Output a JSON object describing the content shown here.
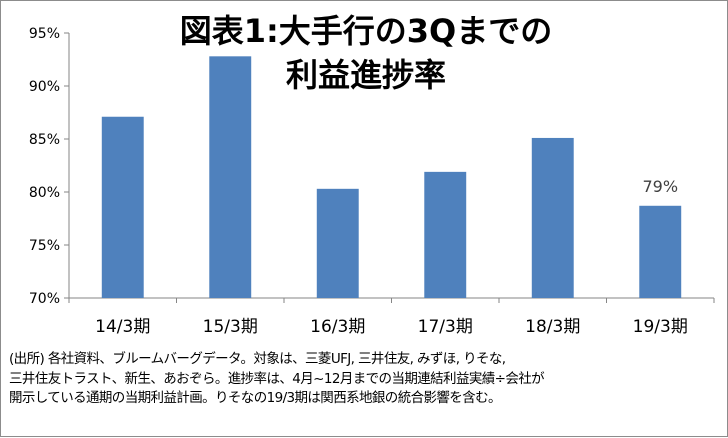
{
  "chart_data": {
    "type": "bar",
    "title_lines": [
      "図表1:大手行の3Qまでの",
      "利益進捗率"
    ],
    "categories": [
      "14/3期",
      "15/3期",
      "16/3期",
      "17/3期",
      "18/3期",
      "19/3期"
    ],
    "values": [
      87.1,
      92.8,
      80.3,
      81.9,
      85.1,
      78.7
    ],
    "y_ticks": [
      "70%",
      "75%",
      "80%",
      "85%",
      "90%",
      "95%"
    ],
    "ylim": [
      70,
      95
    ],
    "y_unit": "%",
    "data_labels": [
      {
        "index": 5,
        "text": "79%"
      }
    ],
    "bar_color": "#4f81bd",
    "grid": false,
    "legend": "none"
  },
  "note_lines": [
    "(出所) 各社資料、ブルームバーグデータ。対象は、三菱UFJ, 三井住友, みずほ, りそな,",
    "三井住友トラスト、新生、あおぞら。進捗率は、4月~12月までの当期連結利益実績÷会社が",
    "開示している通期の当期利益計画。りそなの19/3期は関西系地銀の統合影響を含む。"
  ]
}
